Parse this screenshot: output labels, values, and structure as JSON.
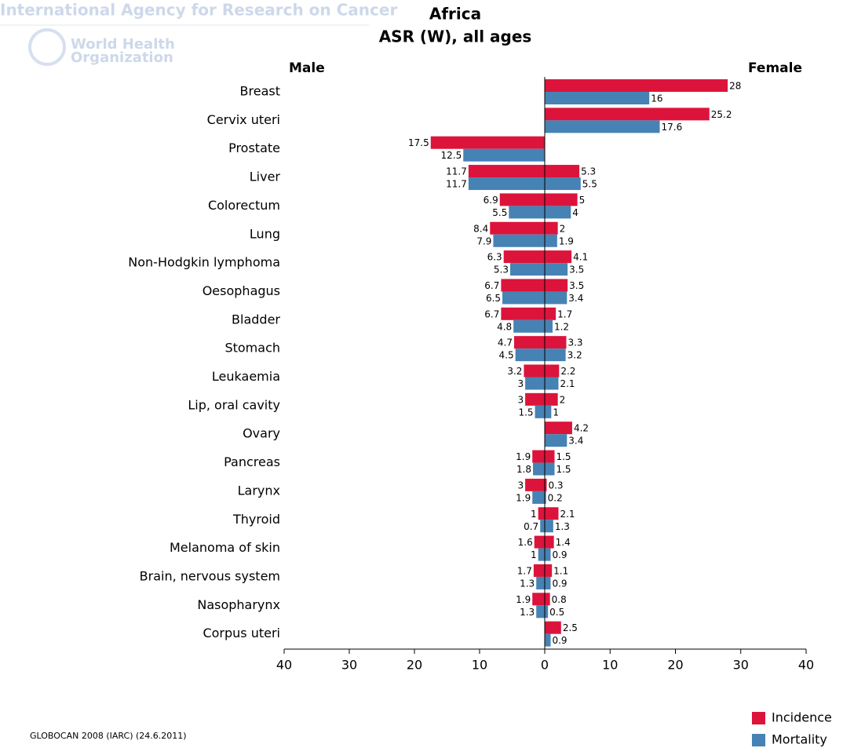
{
  "header": {
    "agency": "International Agency for Research on Cancer",
    "who": [
      "World Health",
      "Organization"
    ]
  },
  "chart_data": {
    "type": "bar",
    "orientation": "horizontal",
    "title": "Africa",
    "subtitle": "ASR (W), all ages",
    "source": "GLOBOCAN 2008 (IARC) (24.6.2011)",
    "categories": [
      "Breast",
      "Cervix uteri",
      "Prostate",
      "Liver",
      "Colorectum",
      "Lung",
      "Non-Hodgkin lymphoma",
      "Oesophagus",
      "Bladder",
      "Stomach",
      "Leukaemia",
      "Lip, oral cavity",
      "Ovary",
      "Pancreas",
      "Larynx",
      "Thyroid",
      "Melanoma of skin",
      "Brain, nervous system",
      "Nasopharynx",
      "Corpus uteri"
    ],
    "legend": "bottom-right",
    "panels": [
      {
        "name": "Male",
        "xlim": [
          40,
          0
        ],
        "xticks": [
          40,
          30,
          20,
          10,
          0
        ],
        "series": [
          {
            "name": "Incidence",
            "color": "#dc143c",
            "values": [
              null,
              null,
              17.5,
              11.7,
              6.9,
              8.4,
              6.3,
              6.7,
              6.7,
              4.7,
              3.2,
              3,
              null,
              1.9,
              3,
              1,
              1.6,
              1.7,
              1.9,
              null
            ]
          },
          {
            "name": "Mortality",
            "color": "#4682b4",
            "values": [
              null,
              null,
              12.5,
              11.7,
              5.5,
              7.9,
              5.3,
              6.5,
              4.8,
              4.5,
              3,
              1.5,
              null,
              1.8,
              1.9,
              0.7,
              1,
              1.3,
              1.3,
              null
            ]
          }
        ]
      },
      {
        "name": "Female",
        "xlim": [
          0,
          40
        ],
        "xticks": [
          10,
          20,
          30,
          40
        ],
        "series": [
          {
            "name": "Incidence",
            "color": "#dc143c",
            "values": [
              28,
              25.2,
              null,
              5.3,
              5,
              2,
              4.1,
              3.5,
              1.7,
              3.3,
              2.2,
              2,
              4.2,
              1.5,
              0.3,
              2.1,
              1.4,
              1.1,
              0.8,
              2.5
            ]
          },
          {
            "name": "Mortality",
            "color": "#4682b4",
            "values": [
              16,
              17.6,
              null,
              5.5,
              4,
              1.9,
              3.5,
              3.4,
              1.2,
              3.2,
              2.1,
              1,
              3.4,
              1.5,
              0.2,
              1.3,
              0.9,
              0.9,
              0.5,
              0.9
            ]
          }
        ]
      }
    ]
  }
}
